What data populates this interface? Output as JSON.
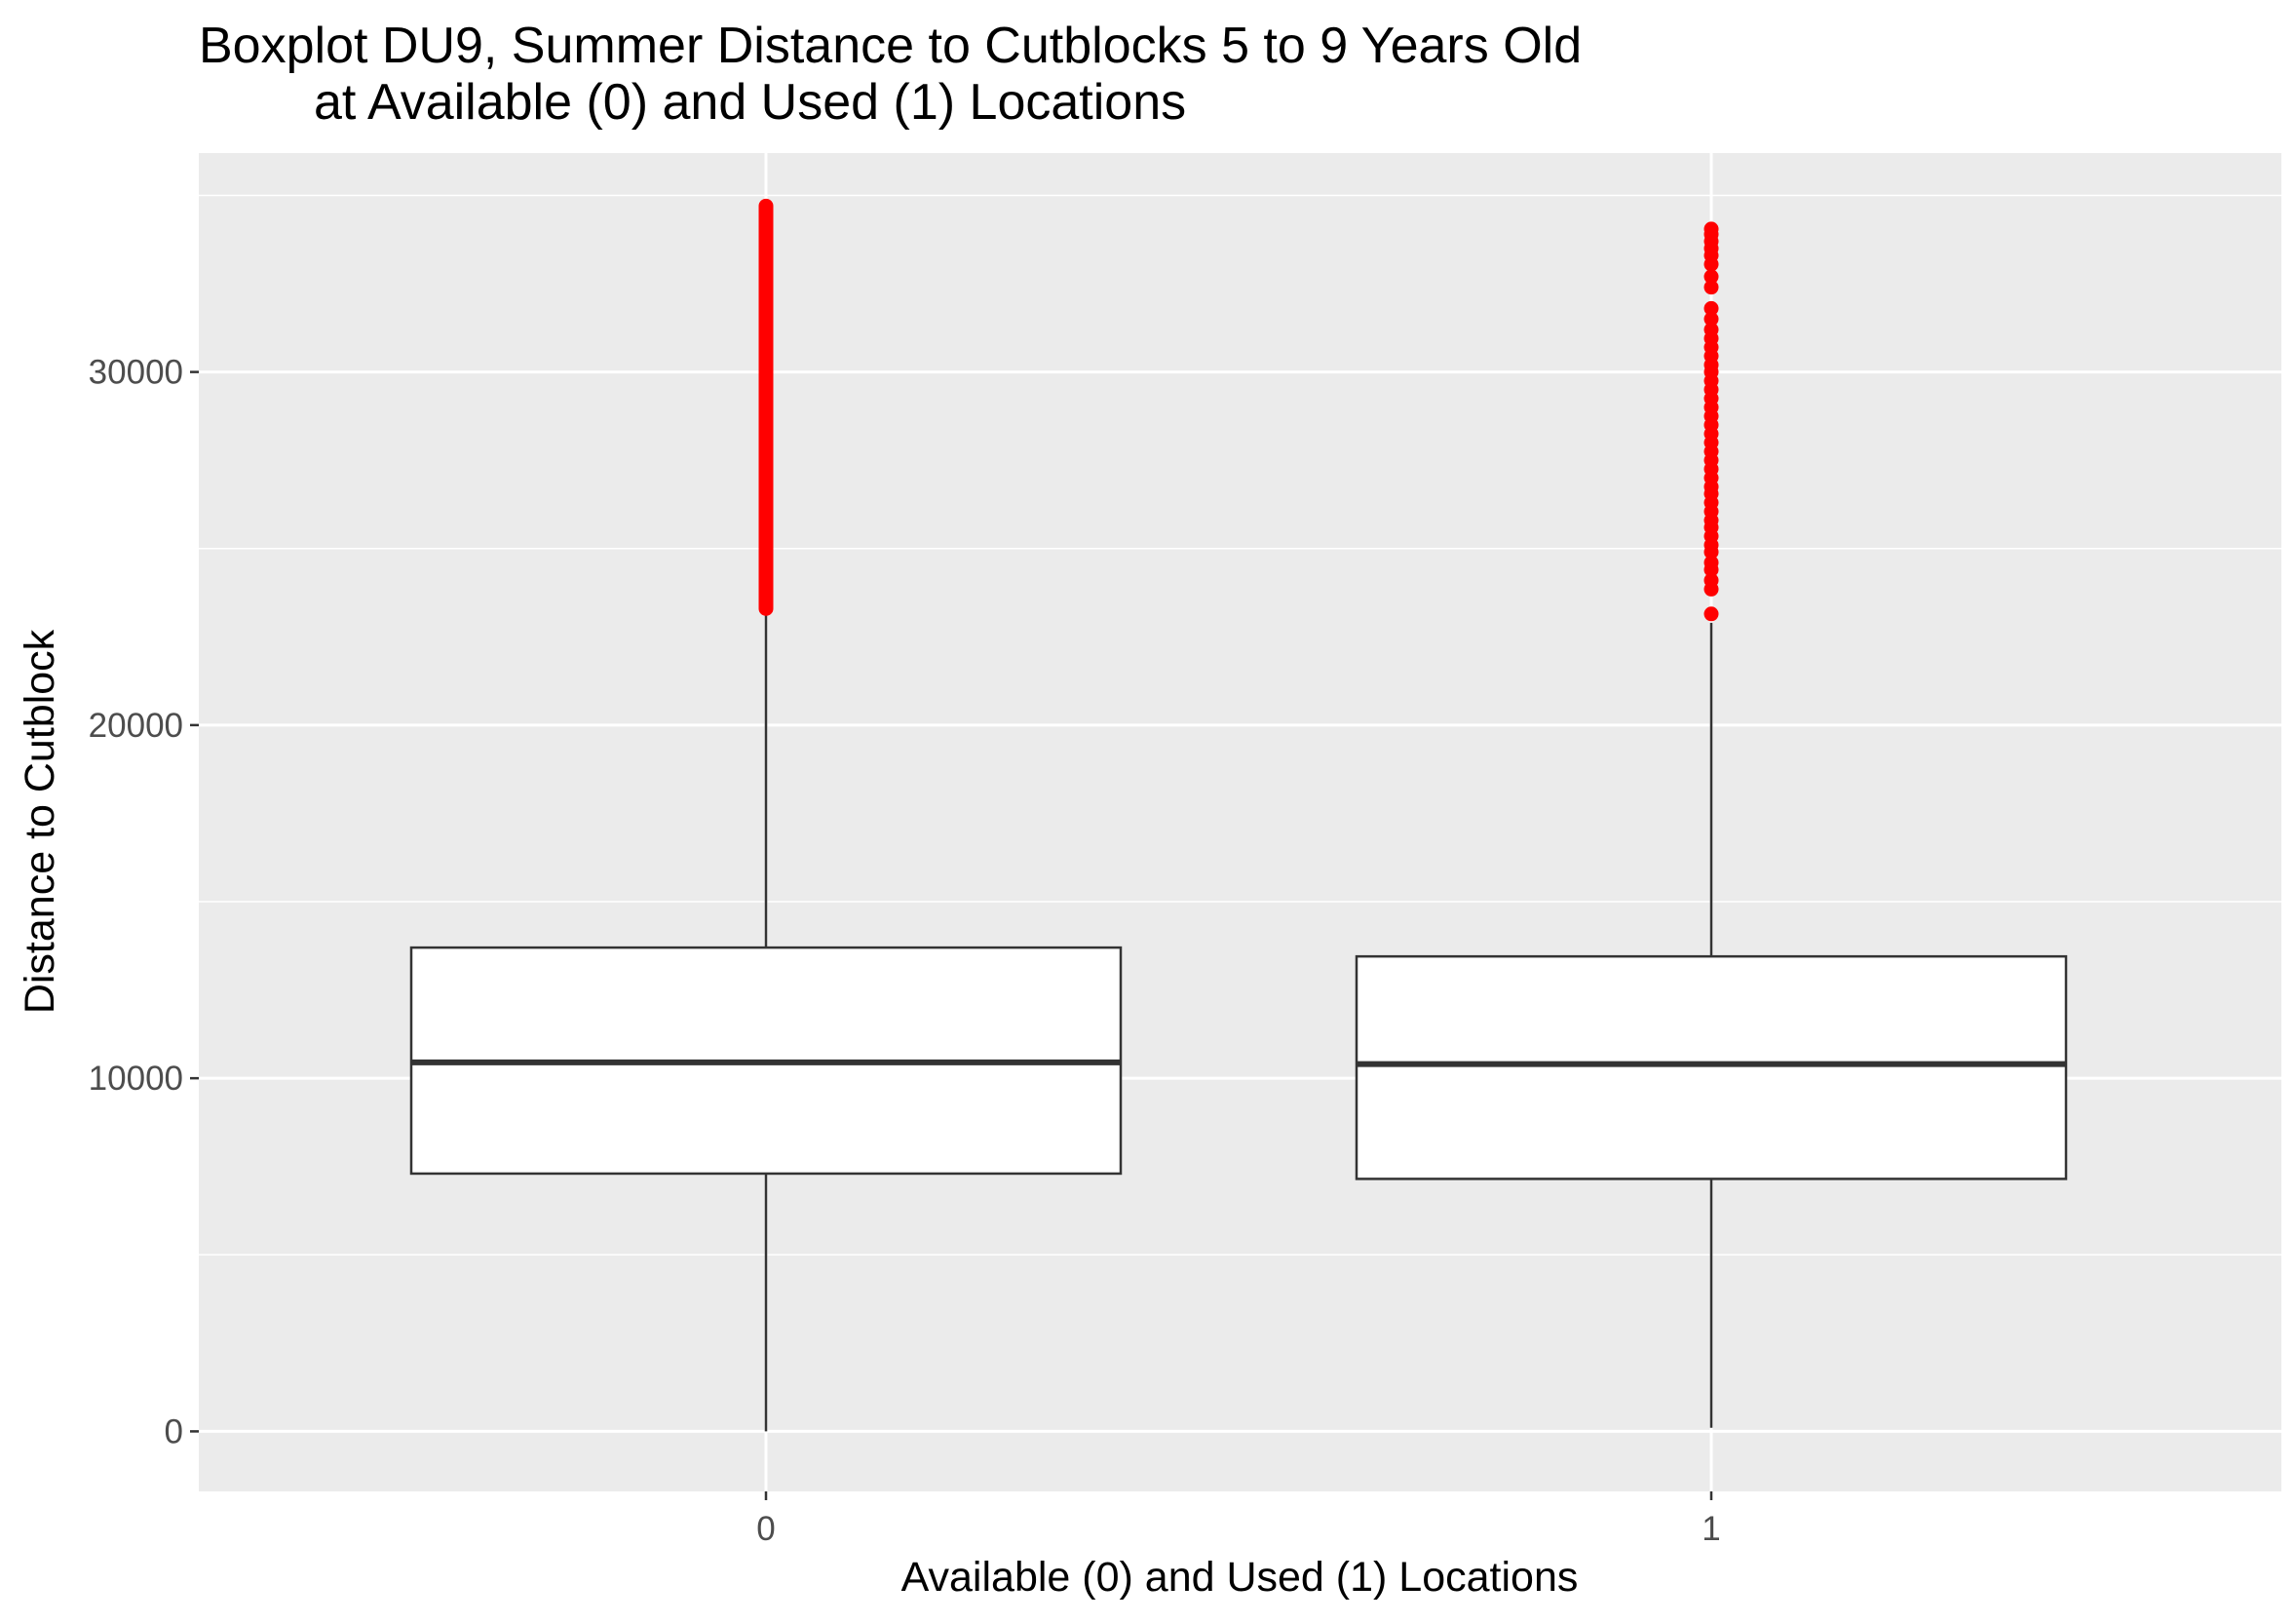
{
  "chart_data": {
    "type": "box",
    "title_line1": "Boxplot DU9, Summer Distance to Cutblocks 5 to 9 Years Old",
    "title_line2": "at Available (0) and Used (1) Locations",
    "xlabel": "Available (0) and Used (1) Locations",
    "ylabel": "Distance to Cutblock",
    "categories": [
      "0",
      "1"
    ],
    "ylim": [
      -1700,
      36200
    ],
    "y_ticks": [
      0,
      10000,
      20000,
      30000
    ],
    "y_tick_labels": [
      "0",
      "10000",
      "20000",
      "30000"
    ],
    "grid": true,
    "colors": {
      "panel_background": "#ebebeb",
      "grid_line": "#ffffff",
      "box_fill": "#ffffff",
      "box_stroke": "#333333",
      "outlier": "#ff0000"
    },
    "boxes": [
      {
        "category": "0",
        "min": 0,
        "q1": 7300,
        "median": 10450,
        "q3": 13700,
        "whisker_high": 23300,
        "outliers_continuous_range": [
          23300,
          34700
        ],
        "outliers": []
      },
      {
        "category": "1",
        "min": 100,
        "q1": 7150,
        "median": 10400,
        "q3": 13450,
        "whisker_high": 22900,
        "outliers_continuous_range": null,
        "outliers": [
          23150,
          23850,
          24100,
          24400,
          24600,
          24900,
          25100,
          25350,
          25600,
          25800,
          26050,
          26300,
          26550,
          26750,
          27000,
          27250,
          27500,
          27750,
          28000,
          28250,
          28500,
          28750,
          29000,
          29250,
          29500,
          29750,
          30000,
          30200,
          30450,
          30700,
          30950,
          31200,
          31500,
          31800,
          32400,
          32700,
          33050,
          33300,
          33500,
          33700,
          33900,
          34050
        ]
      }
    ]
  }
}
